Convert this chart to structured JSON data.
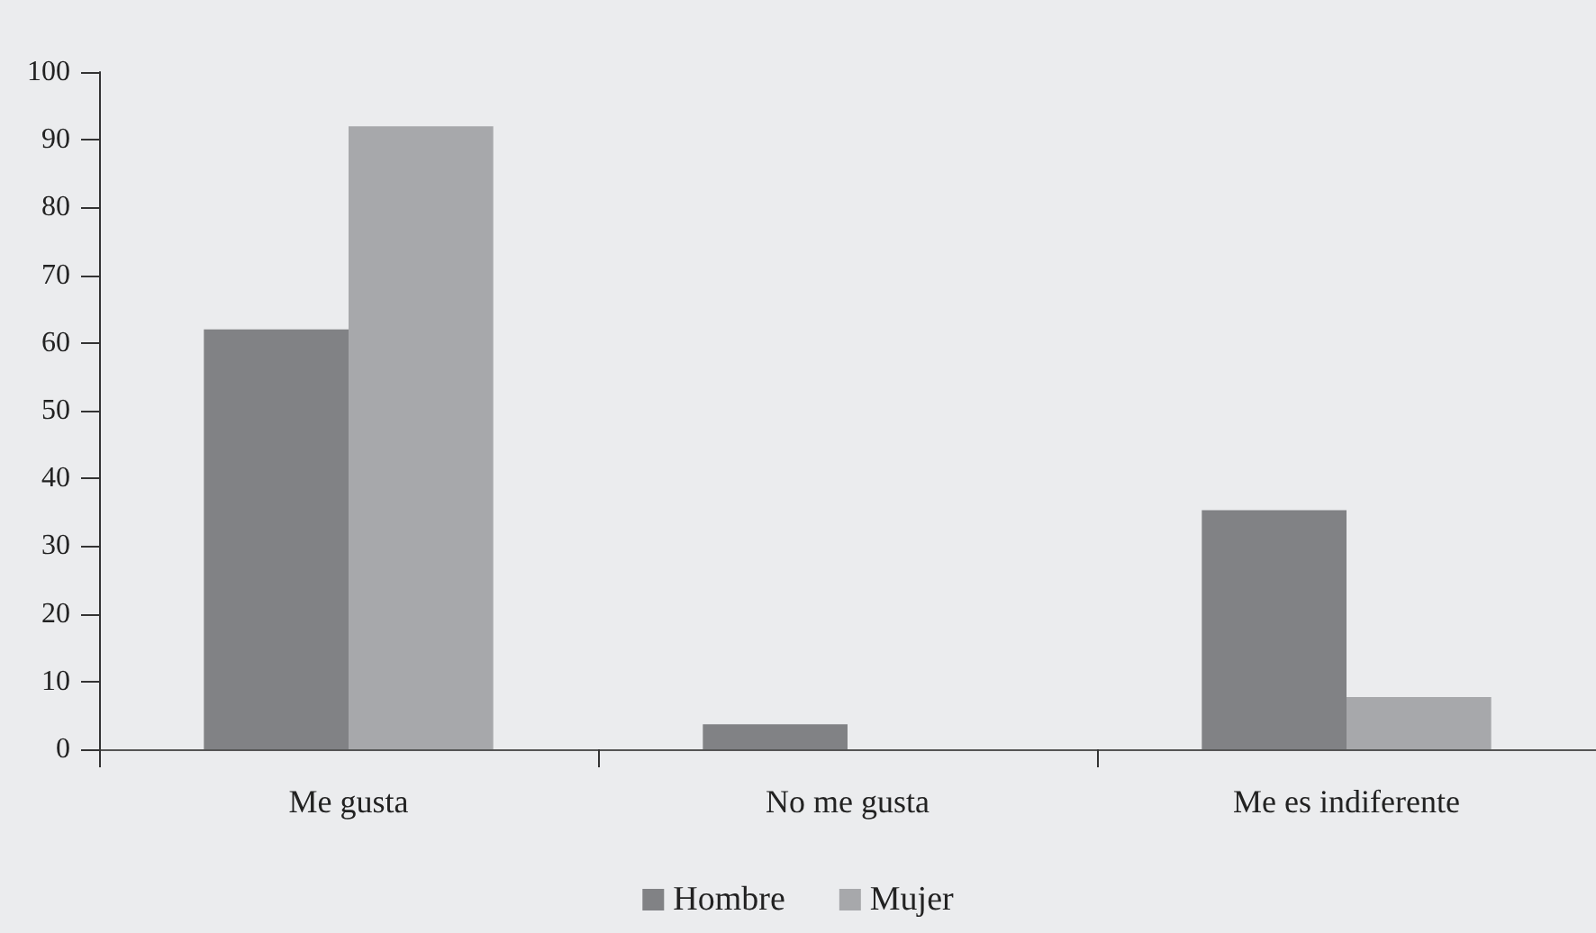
{
  "chart_data": {
    "type": "bar",
    "categories": [
      "Me gusta",
      "No me gusta",
      "Me es indiferente"
    ],
    "series": [
      {
        "name": "Hombre",
        "color": "#818285",
        "values": [
          62,
          3.7,
          35.3
        ]
      },
      {
        "name": "Mujer",
        "color": "#a7a8ab",
        "values": [
          92,
          0,
          7.7
        ]
      }
    ],
    "ylim": [
      0,
      100
    ],
    "yticks": [
      0,
      10,
      20,
      30,
      40,
      50,
      60,
      70,
      80,
      90,
      100
    ],
    "grid": false,
    "legend": "bottom"
  }
}
